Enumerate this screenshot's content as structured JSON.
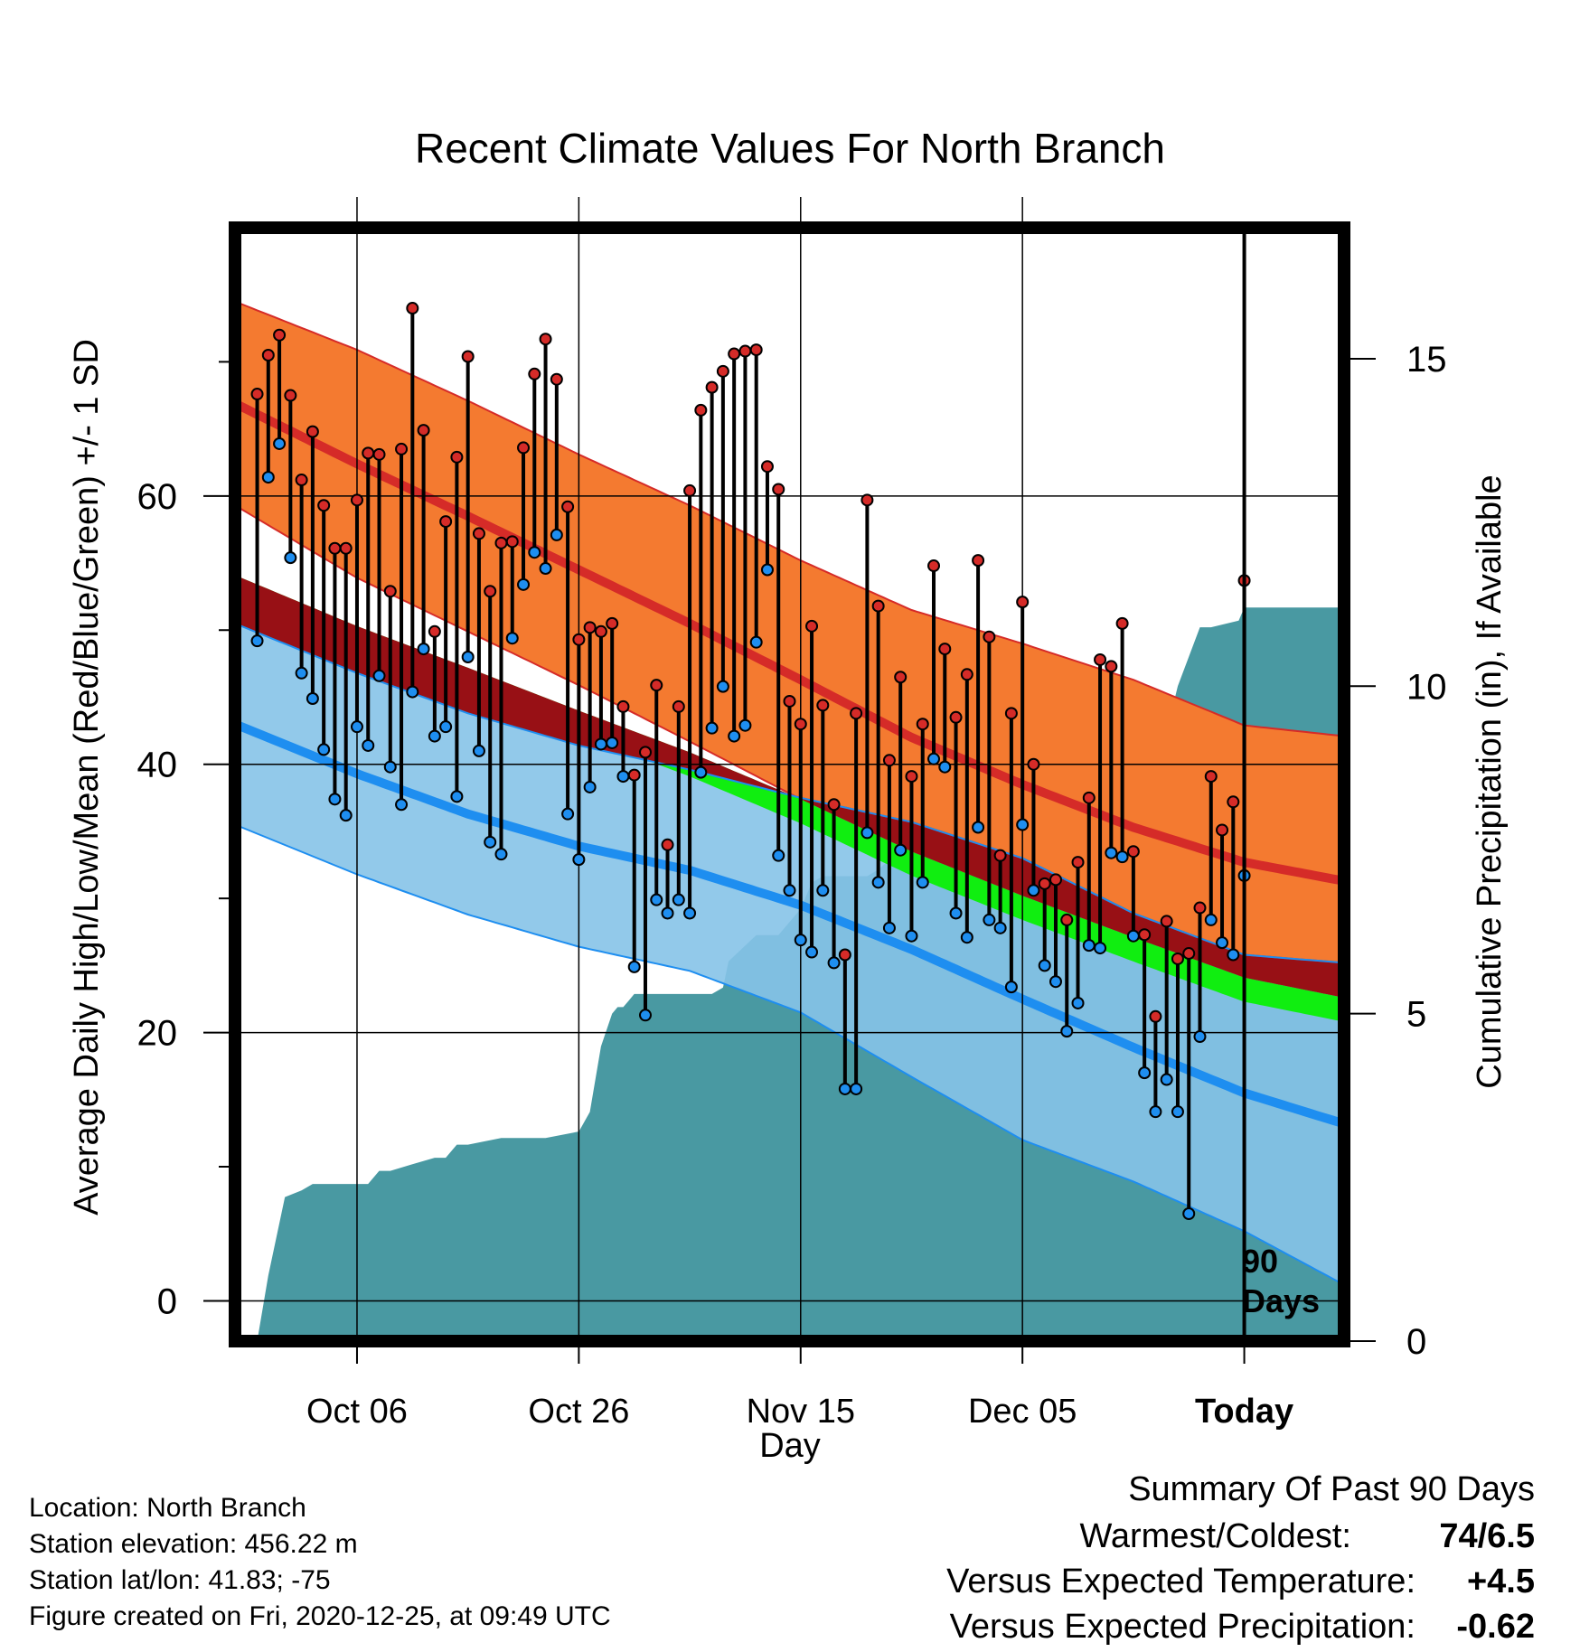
{
  "chart_data": {
    "type": "line",
    "title": "Recent Climate Values For North Branch",
    "xlabel": "Day",
    "ylabel_left": "Average Daily High/Low/Mean (Red/Blue/Green) +/- 1 SD",
    "ylabel_right": "Cumulative Precipitation (in), If Available",
    "x_tick_labels": [
      "Oct 06",
      "Oct 26",
      "Nov 15",
      "Dec 05",
      "Today"
    ],
    "x_tick_days": [
      -80,
      -60,
      -40,
      -20,
      0
    ],
    "y_left_ticks": [
      0,
      20,
      40,
      60
    ],
    "y_left_minor_ticks": [
      10,
      30,
      50,
      70
    ],
    "y_right_ticks": [
      0,
      5,
      10,
      15
    ],
    "ylim_left": [
      -3,
      80
    ],
    "ylim_right": [
      0,
      17
    ],
    "xlim_days": [
      -91,
      9
    ],
    "today_annotation": [
      "90",
      "Days"
    ],
    "colors": {
      "high_band": "#f47a30",
      "high_line": "#d52b28",
      "low_band": "#86c3e8",
      "low_line": "#1e8ef0",
      "mean_band": "#10ee10",
      "overlap_band": "#981015",
      "precip": "#4999a2",
      "high_marker": "#d52b28",
      "low_marker": "#1e8ef0"
    },
    "normals": {
      "days": [
        -91,
        -80,
        -70,
        -60,
        -50,
        -40,
        -30,
        -20,
        -10,
        0,
        9
      ],
      "high_mean": [
        66.9,
        62.4,
        58.5,
        54.5,
        50.5,
        46.3,
        42.0,
        38.5,
        35.3,
        32.7,
        31.3
      ],
      "high_sd": [
        7.6,
        8.5,
        8.6,
        8.6,
        8.8,
        8.9,
        9.5,
        10.5,
        11.0,
        10.2,
        10.8
      ],
      "low_mean": [
        43.0,
        39.3,
        36.3,
        33.9,
        32.1,
        29.5,
        26.2,
        22.5,
        18.9,
        15.5,
        13.2
      ],
      "low_sd": [
        7.5,
        7.5,
        7.5,
        7.5,
        7.5,
        8.0,
        9.5,
        10.5,
        10.0,
        10.3,
        12.0
      ],
      "mean_mean": [
        53.2,
        49.4,
        46.3,
        43.1,
        40.0,
        36.5,
        32.6,
        29.3,
        26.2,
        23.2,
        21.7
      ],
      "mean_half_width": 0.9
    },
    "series": [
      {
        "name": "High",
        "values": [
          67.6,
          70.5,
          72.0,
          67.5,
          61.2,
          64.8,
          59.3,
          56.1,
          56.1,
          59.7,
          63.2,
          63.1,
          52.9,
          63.5,
          74.0,
          64.9,
          49.9,
          58.1,
          62.9,
          70.4,
          57.2,
          52.9,
          56.5,
          56.6,
          63.6,
          69.1,
          71.7,
          68.7,
          59.2,
          49.3,
          50.2,
          49.9,
          50.5,
          44.3,
          39.2,
          40.9,
          45.9,
          34.0,
          44.3,
          60.4,
          66.4,
          68.1,
          69.3,
          70.6,
          70.8,
          70.9,
          62.2,
          60.5,
          44.7,
          43.0,
          50.3,
          44.4,
          37.0,
          25.8,
          43.8,
          59.7,
          51.8,
          40.3,
          46.5,
          39.1,
          43.0,
          54.8,
          48.6,
          43.5,
          46.7,
          55.2,
          49.5,
          33.2,
          43.8,
          52.1,
          40.0,
          31.1,
          31.4,
          28.4,
          32.7,
          37.5,
          47.8,
          47.3,
          50.5,
          33.5,
          27.3,
          21.2,
          28.3,
          25.5,
          25.9,
          29.3,
          39.1,
          35.1,
          37.2,
          53.7
        ]
      },
      {
        "name": "Low",
        "values": [
          49.2,
          61.4,
          63.9,
          55.4,
          46.8,
          44.9,
          41.1,
          37.4,
          36.2,
          42.8,
          41.4,
          46.6,
          39.8,
          37.0,
          45.4,
          48.6,
          42.1,
          42.8,
          37.6,
          48.0,
          41.0,
          34.2,
          33.3,
          49.4,
          53.4,
          55.8,
          54.6,
          57.1,
          36.3,
          32.9,
          38.3,
          41.5,
          41.6,
          39.1,
          24.9,
          21.3,
          29.9,
          28.9,
          29.9,
          28.9,
          39.4,
          42.7,
          45.8,
          42.1,
          42.9,
          49.1,
          54.5,
          33.2,
          30.6,
          26.9,
          26.0,
          30.6,
          25.2,
          15.8,
          15.8,
          34.9,
          31.2,
          27.8,
          33.6,
          27.2,
          31.2,
          40.4,
          39.8,
          28.9,
          27.1,
          35.3,
          28.4,
          27.8,
          23.4,
          35.5,
          30.6,
          25.0,
          23.8,
          20.1,
          22.2,
          26.5,
          26.3,
          33.4,
          33.1,
          27.2,
          17.0,
          14.1,
          16.5,
          14.1,
          6.5,
          19.7,
          28.4,
          26.7,
          25.8,
          31.7
        ]
      },
      {
        "name": "Cumulative Precipitation",
        "x_days": [
          -91,
          -89,
          -88,
          -86.5,
          -85,
          -84,
          -81,
          -79,
          -78,
          -77,
          -75,
          -73,
          -72,
          -71,
          -70,
          -67,
          -66,
          -65,
          -63,
          -60,
          -59,
          -58,
          -57,
          -56.5,
          -56,
          -55.5,
          -55,
          -53,
          -51,
          -48,
          -47,
          -46.5,
          -44,
          -43,
          -42,
          -40,
          -39,
          -38,
          -37.5,
          -36,
          -34,
          -33,
          -31,
          -29,
          -28,
          -26,
          -25,
          -24,
          -22,
          -14,
          -13,
          -10,
          -9,
          -7,
          -6,
          -4,
          -3,
          -0.5,
          0,
          9
        ],
        "values": [
          0,
          0,
          1.0,
          2.2,
          2.3,
          2.4,
          2.4,
          2.4,
          2.6,
          2.6,
          2.7,
          2.8,
          2.8,
          3.0,
          3.0,
          3.1,
          3.1,
          3.1,
          3.1,
          3.2,
          3.5,
          4.5,
          5.0,
          5.1,
          5.1,
          5.2,
          5.3,
          5.3,
          5.3,
          5.3,
          5.4,
          5.8,
          6.2,
          6.2,
          6.2,
          6.6,
          7.0,
          7.1,
          7.1,
          7.1,
          7.1,
          7.2,
          7.5,
          8.0,
          8.2,
          8.3,
          8.3,
          8.7,
          8.8,
          8.8,
          9.0,
          9.0,
          9.1,
          9.3,
          10.0,
          10.9,
          10.9,
          11.0,
          11.2,
          11.2
        ]
      }
    ],
    "summary": {
      "heading": "Summary Of Past 90 Days",
      "rows": [
        {
          "label": "Warmest/Coldest:",
          "value": "74/6.5",
          "color": "#000000"
        },
        {
          "label": "Versus Expected Temperature:",
          "value": "+4.5",
          "color": "#d52b28"
        },
        {
          "label": "Versus Expected Precipitation:",
          "value": "-0.62",
          "color": "#a0522d"
        }
      ]
    },
    "station_info": [
      "Location: North Branch",
      "Station elevation: 456.22 m",
      "Station lat/lon: 41.83; -75",
      "Figure created on Fri, 2020-12-25, at 09:49 UTC"
    ]
  }
}
